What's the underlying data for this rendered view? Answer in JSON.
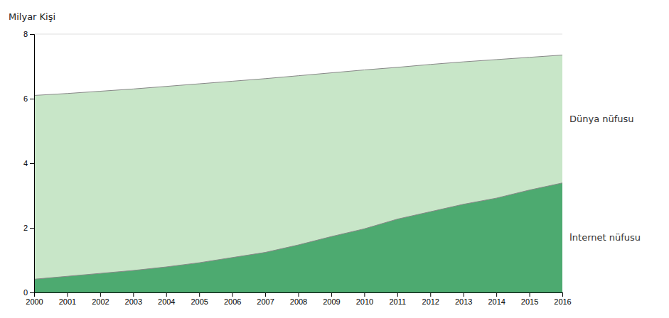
{
  "chart_data": {
    "type": "area",
    "y_label": "Milyar Kişi",
    "x": [
      2000,
      2001,
      2002,
      2003,
      2004,
      2005,
      2006,
      2007,
      2008,
      2009,
      2010,
      2011,
      2012,
      2013,
      2014,
      2015,
      2016
    ],
    "series": [
      {
        "name": "Dünya nüfusu",
        "color": "#c8e6c8",
        "values": [
          6.1,
          6.16,
          6.23,
          6.3,
          6.38,
          6.46,
          6.54,
          6.62,
          6.71,
          6.8,
          6.89,
          6.97,
          7.06,
          7.14,
          7.21,
          7.28,
          7.35
        ]
      },
      {
        "name": "İnternet nüfusu",
        "color": "#4daa70",
        "values": [
          0.41,
          0.5,
          0.59,
          0.68,
          0.79,
          0.92,
          1.08,
          1.24,
          1.47,
          1.73,
          1.97,
          2.27,
          2.5,
          2.73,
          2.92,
          3.17,
          3.39
        ]
      }
    ],
    "xlim": [
      2000,
      2016
    ],
    "xticks": [
      2000,
      2001,
      2002,
      2003,
      2004,
      2005,
      2006,
      2007,
      2008,
      2009,
      2010,
      2011,
      2012,
      2013,
      2014,
      2015,
      2016
    ],
    "ylim": [
      0,
      8
    ],
    "yticks": [
      0,
      2,
      4,
      6,
      8
    ],
    "grid": true
  }
}
